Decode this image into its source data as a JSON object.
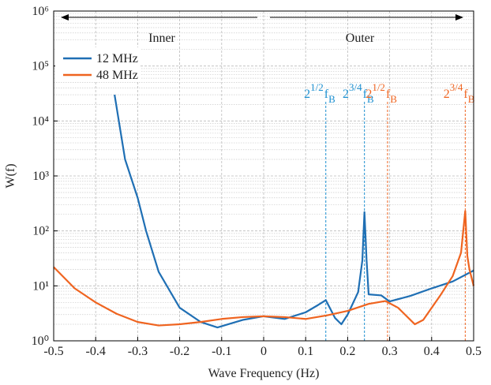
{
  "chart_data": {
    "type": "line",
    "xlabel": "Wave Frequency (Hz)",
    "ylabel": "W(f)",
    "xlim": [
      -0.5,
      0.5
    ],
    "xticks": [
      -0.5,
      -0.4,
      -0.3,
      -0.2,
      -0.1,
      0,
      0.1,
      0.2,
      0.3,
      0.4,
      0.5
    ],
    "ylim": [
      1,
      1000000
    ],
    "yscale": "log",
    "yticks": [
      {
        "value": 1,
        "label": "10⁰"
      },
      {
        "value": 10,
        "label": "10¹"
      },
      {
        "value": 100,
        "label": "10²"
      },
      {
        "value": 1000,
        "label": "10³"
      },
      {
        "value": 10000,
        "label": "10⁴"
      },
      {
        "value": 100000,
        "label": "10⁵"
      },
      {
        "value": 1000000,
        "label": "10⁶"
      }
    ],
    "grid": true,
    "minor_grid": true,
    "legend": "upper left",
    "regions": [
      {
        "label": "Inner",
        "direction": "left"
      },
      {
        "label": "Outer",
        "direction": "right"
      }
    ],
    "series": [
      {
        "name": "12 MHz",
        "color": "#1f6fb4",
        "x": [
          -0.355,
          -0.33,
          -0.3,
          -0.28,
          -0.25,
          -0.2,
          -0.15,
          -0.11,
          -0.05,
          0,
          0.05,
          0.1,
          0.13,
          0.148,
          0.17,
          0.185,
          0.2,
          0.225,
          0.235,
          0.24,
          0.245,
          0.25,
          0.28,
          0.3,
          0.35,
          0.4,
          0.45,
          0.5
        ],
        "values": [
          30000,
          2000,
          400,
          100,
          18,
          4,
          2.2,
          1.75,
          2.4,
          2.8,
          2.5,
          3.3,
          4.5,
          5.5,
          2.6,
          2,
          3,
          7.7,
          29,
          220,
          30,
          7,
          6.7,
          5.2,
          6.6,
          9,
          12,
          19
        ]
      },
      {
        "name": "48 MHz",
        "color": "#ef6420",
        "x": [
          -0.5,
          -0.45,
          -0.4,
          -0.35,
          -0.3,
          -0.25,
          -0.2,
          -0.15,
          -0.1,
          -0.05,
          0,
          0.05,
          0.1,
          0.15,
          0.2,
          0.25,
          0.29,
          0.32,
          0.36,
          0.38,
          0.42,
          0.45,
          0.47,
          0.48,
          0.485,
          0.49,
          0.5
        ],
        "values": [
          22,
          9,
          5,
          3.1,
          2.2,
          1.9,
          2,
          2.2,
          2.5,
          2.7,
          2.8,
          2.7,
          2.5,
          2.9,
          3.5,
          4.7,
          5.3,
          4,
          2,
          2.4,
          6.6,
          15,
          40,
          230,
          35,
          20,
          10
        ]
      }
    ],
    "annotations": [
      {
        "x": 0.148,
        "color": "#1b8fd0",
        "base": "2",
        "exp": "1/2",
        "symbol": "f",
        "sub": "B"
      },
      {
        "x": 0.24,
        "color": "#1b8fd0",
        "base": "2",
        "exp": "3/4",
        "symbol": "f",
        "sub": "B"
      },
      {
        "x": 0.295,
        "color": "#ef6420",
        "base": "2",
        "exp": "1/2",
        "symbol": "f",
        "sub": "B"
      },
      {
        "x": 0.48,
        "color": "#ef6420",
        "base": "2",
        "exp": "3/4",
        "symbol": "f",
        "sub": "B"
      }
    ]
  }
}
